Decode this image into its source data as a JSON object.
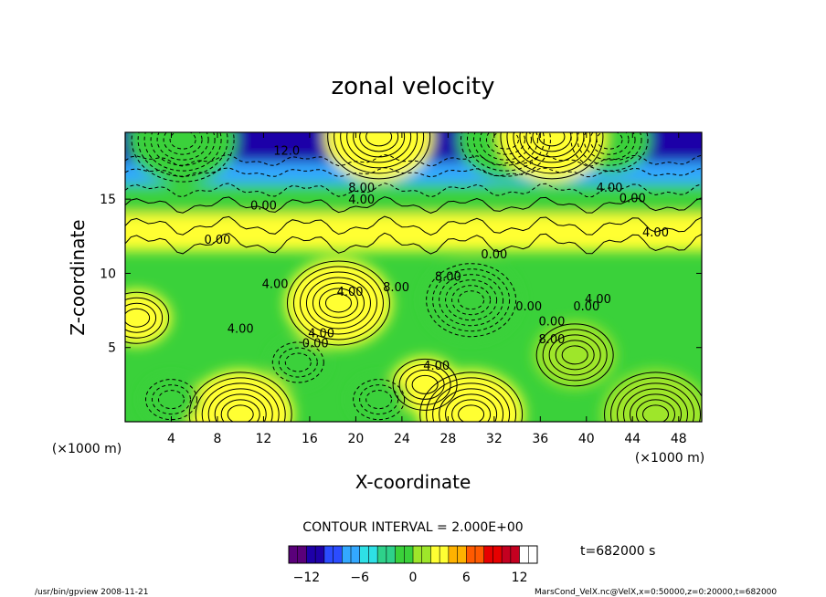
{
  "chart_data": {
    "type": "heatmap",
    "title": "zonal velocity",
    "xlabel": "X-coordinate",
    "ylabel": "Z-coordinate",
    "x_unit": "(×1000 m)",
    "z_unit": "(×1000 m)",
    "xlim": [
      0,
      50
    ],
    "zlim": [
      0,
      19.5
    ],
    "xticks": [
      4,
      8,
      12,
      16,
      20,
      24,
      28,
      32,
      36,
      40,
      44,
      48
    ],
    "zticks": [
      5,
      10,
      15
    ],
    "contour_interval_text": "CONTOUR INTERVAL = 2.000E+00",
    "time_text": "t=682000 s",
    "colorbar": {
      "range": [
        -14,
        14
      ],
      "ticks": [
        -12,
        -6,
        0,
        6,
        12
      ],
      "tick_labels": [
        "−12",
        "−6",
        "0",
        "6",
        "12"
      ],
      "colors": [
        "#5a007a",
        "#1e00a8",
        "#2b4cff",
        "#33a8ff",
        "#2ee0e6",
        "#2ed18a",
        "#3ad13a",
        "#9ee62a",
        "#ffff33",
        "#ffb200",
        "#ff5a00",
        "#e60000",
        "#c40020",
        "#ffffff"
      ]
    },
    "contour_labels": [
      "12.0",
      "8.00",
      "4.00",
      "4.00",
      "0.00",
      "0.00",
      "0.00",
      "4.00",
      "4.00",
      "0.00",
      "8.00",
      "4.00",
      "0.00",
      "4.00",
      "4.00",
      "0.00",
      "8.00",
      "0.00",
      "4.00",
      "8.00",
      "4.00",
      "0.00"
    ],
    "features": [
      {
        "type": "max",
        "x": 18.5,
        "z": 8.0,
        "value": 14
      },
      {
        "type": "min",
        "x": 30.0,
        "z": 8.2,
        "value": -12
      },
      {
        "type": "max",
        "x": 39.0,
        "z": 4.5,
        "value": 9
      },
      {
        "type": "max",
        "x": 10.0,
        "z": 0.5,
        "value": 14
      },
      {
        "type": "max",
        "x": 30.0,
        "z": 0.5,
        "value": 14
      },
      {
        "type": "max",
        "x": 46.0,
        "z": 0.5,
        "value": 13
      },
      {
        "type": "max",
        "x": 1.0,
        "z": 7.0,
        "value": 8
      },
      {
        "type": "max",
        "x": 26.0,
        "z": 2.5,
        "value": 8
      },
      {
        "type": "min",
        "x": 4.0,
        "z": 1.5,
        "value": -6
      },
      {
        "type": "min",
        "x": 15.0,
        "z": 4.0,
        "value": -5
      },
      {
        "type": "min",
        "x": 22.0,
        "z": 1.5,
        "value": -5
      },
      {
        "type": "min",
        "x": 5.0,
        "z": 19.0,
        "value": -14
      },
      {
        "type": "min",
        "x": 33.0,
        "z": 19.0,
        "value": -12
      },
      {
        "type": "min",
        "x": 42.0,
        "z": 19.0,
        "value": -10
      },
      {
        "type": "max",
        "x": 22.0,
        "z": 19.2,
        "value": 14
      },
      {
        "type": "max",
        "x": 37.0,
        "z": 19.2,
        "value": 14
      }
    ]
  },
  "footer_left": "/usr/bin/gpview   2008-11-21",
  "footer_right": "MarsCond_VelX.nc@VelX,x=0:50000,z=0:20000,t=682000"
}
